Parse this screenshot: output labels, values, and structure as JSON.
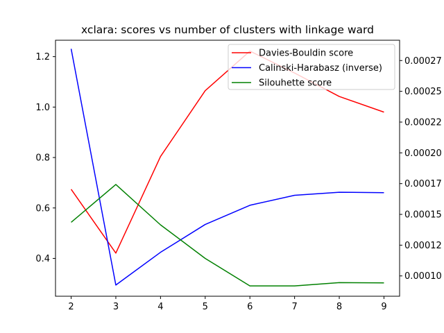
{
  "chart_data": {
    "type": "line",
    "title": "xclara: scores vs number of clusters with linkage ward",
    "xlabel": "",
    "ylabel": "",
    "x": [
      2,
      3,
      4,
      5,
      6,
      7,
      8,
      9
    ],
    "xlim": [
      1.65,
      9.35
    ],
    "ylim_left": [
      0.25,
      1.265
    ],
    "ylim_right": [
      8.35e-05,
      0.0002915
    ],
    "x_ticks": [
      "2",
      "3",
      "4",
      "5",
      "6",
      "7",
      "8",
      "9"
    ],
    "y_left_ticks": [
      {
        "value": 0.4,
        "label": "0.4"
      },
      {
        "value": 0.6,
        "label": "0.6"
      },
      {
        "value": 0.8,
        "label": "0.8"
      },
      {
        "value": 1.0,
        "label": "1.0"
      },
      {
        "value": 1.2,
        "label": "1.2"
      }
    ],
    "y_right_ticks": [
      {
        "value": 0.0001,
        "label": "0.00010"
      },
      {
        "value": 0.000125,
        "label": "0.00012"
      },
      {
        "value": 0.00015,
        "label": "0.00015"
      },
      {
        "value": 0.000175,
        "label": "0.00017"
      },
      {
        "value": 0.0002,
        "label": "0.00020"
      },
      {
        "value": 0.000225,
        "label": "0.00022"
      },
      {
        "value": 0.00025,
        "label": "0.00025"
      },
      {
        "value": 0.000275,
        "label": "0.00027"
      }
    ],
    "series": [
      {
        "name": "Davies-Bouldin score",
        "color": "#ff0000",
        "axis": "left",
        "values": [
          0.674,
          0.421,
          0.804,
          1.065,
          1.222,
          1.135,
          1.042,
          0.98
        ]
      },
      {
        "name": "Calinski-Harabasz (inverse)",
        "color": "#0000ff",
        "axis": "right",
        "values": [
          0.0002845,
          9.26e-05,
          0.0001192,
          0.0001418,
          0.0001574,
          0.0001655,
          0.000168,
          0.0001676
        ]
      },
      {
        "name": "Silouhette score",
        "color": "#008000",
        "axis": "left",
        "values": [
          0.543,
          0.693,
          0.533,
          0.4,
          0.291,
          0.291,
          0.304,
          0.303
        ]
      }
    ],
    "grid": false,
    "legend_position": "top-right"
  }
}
